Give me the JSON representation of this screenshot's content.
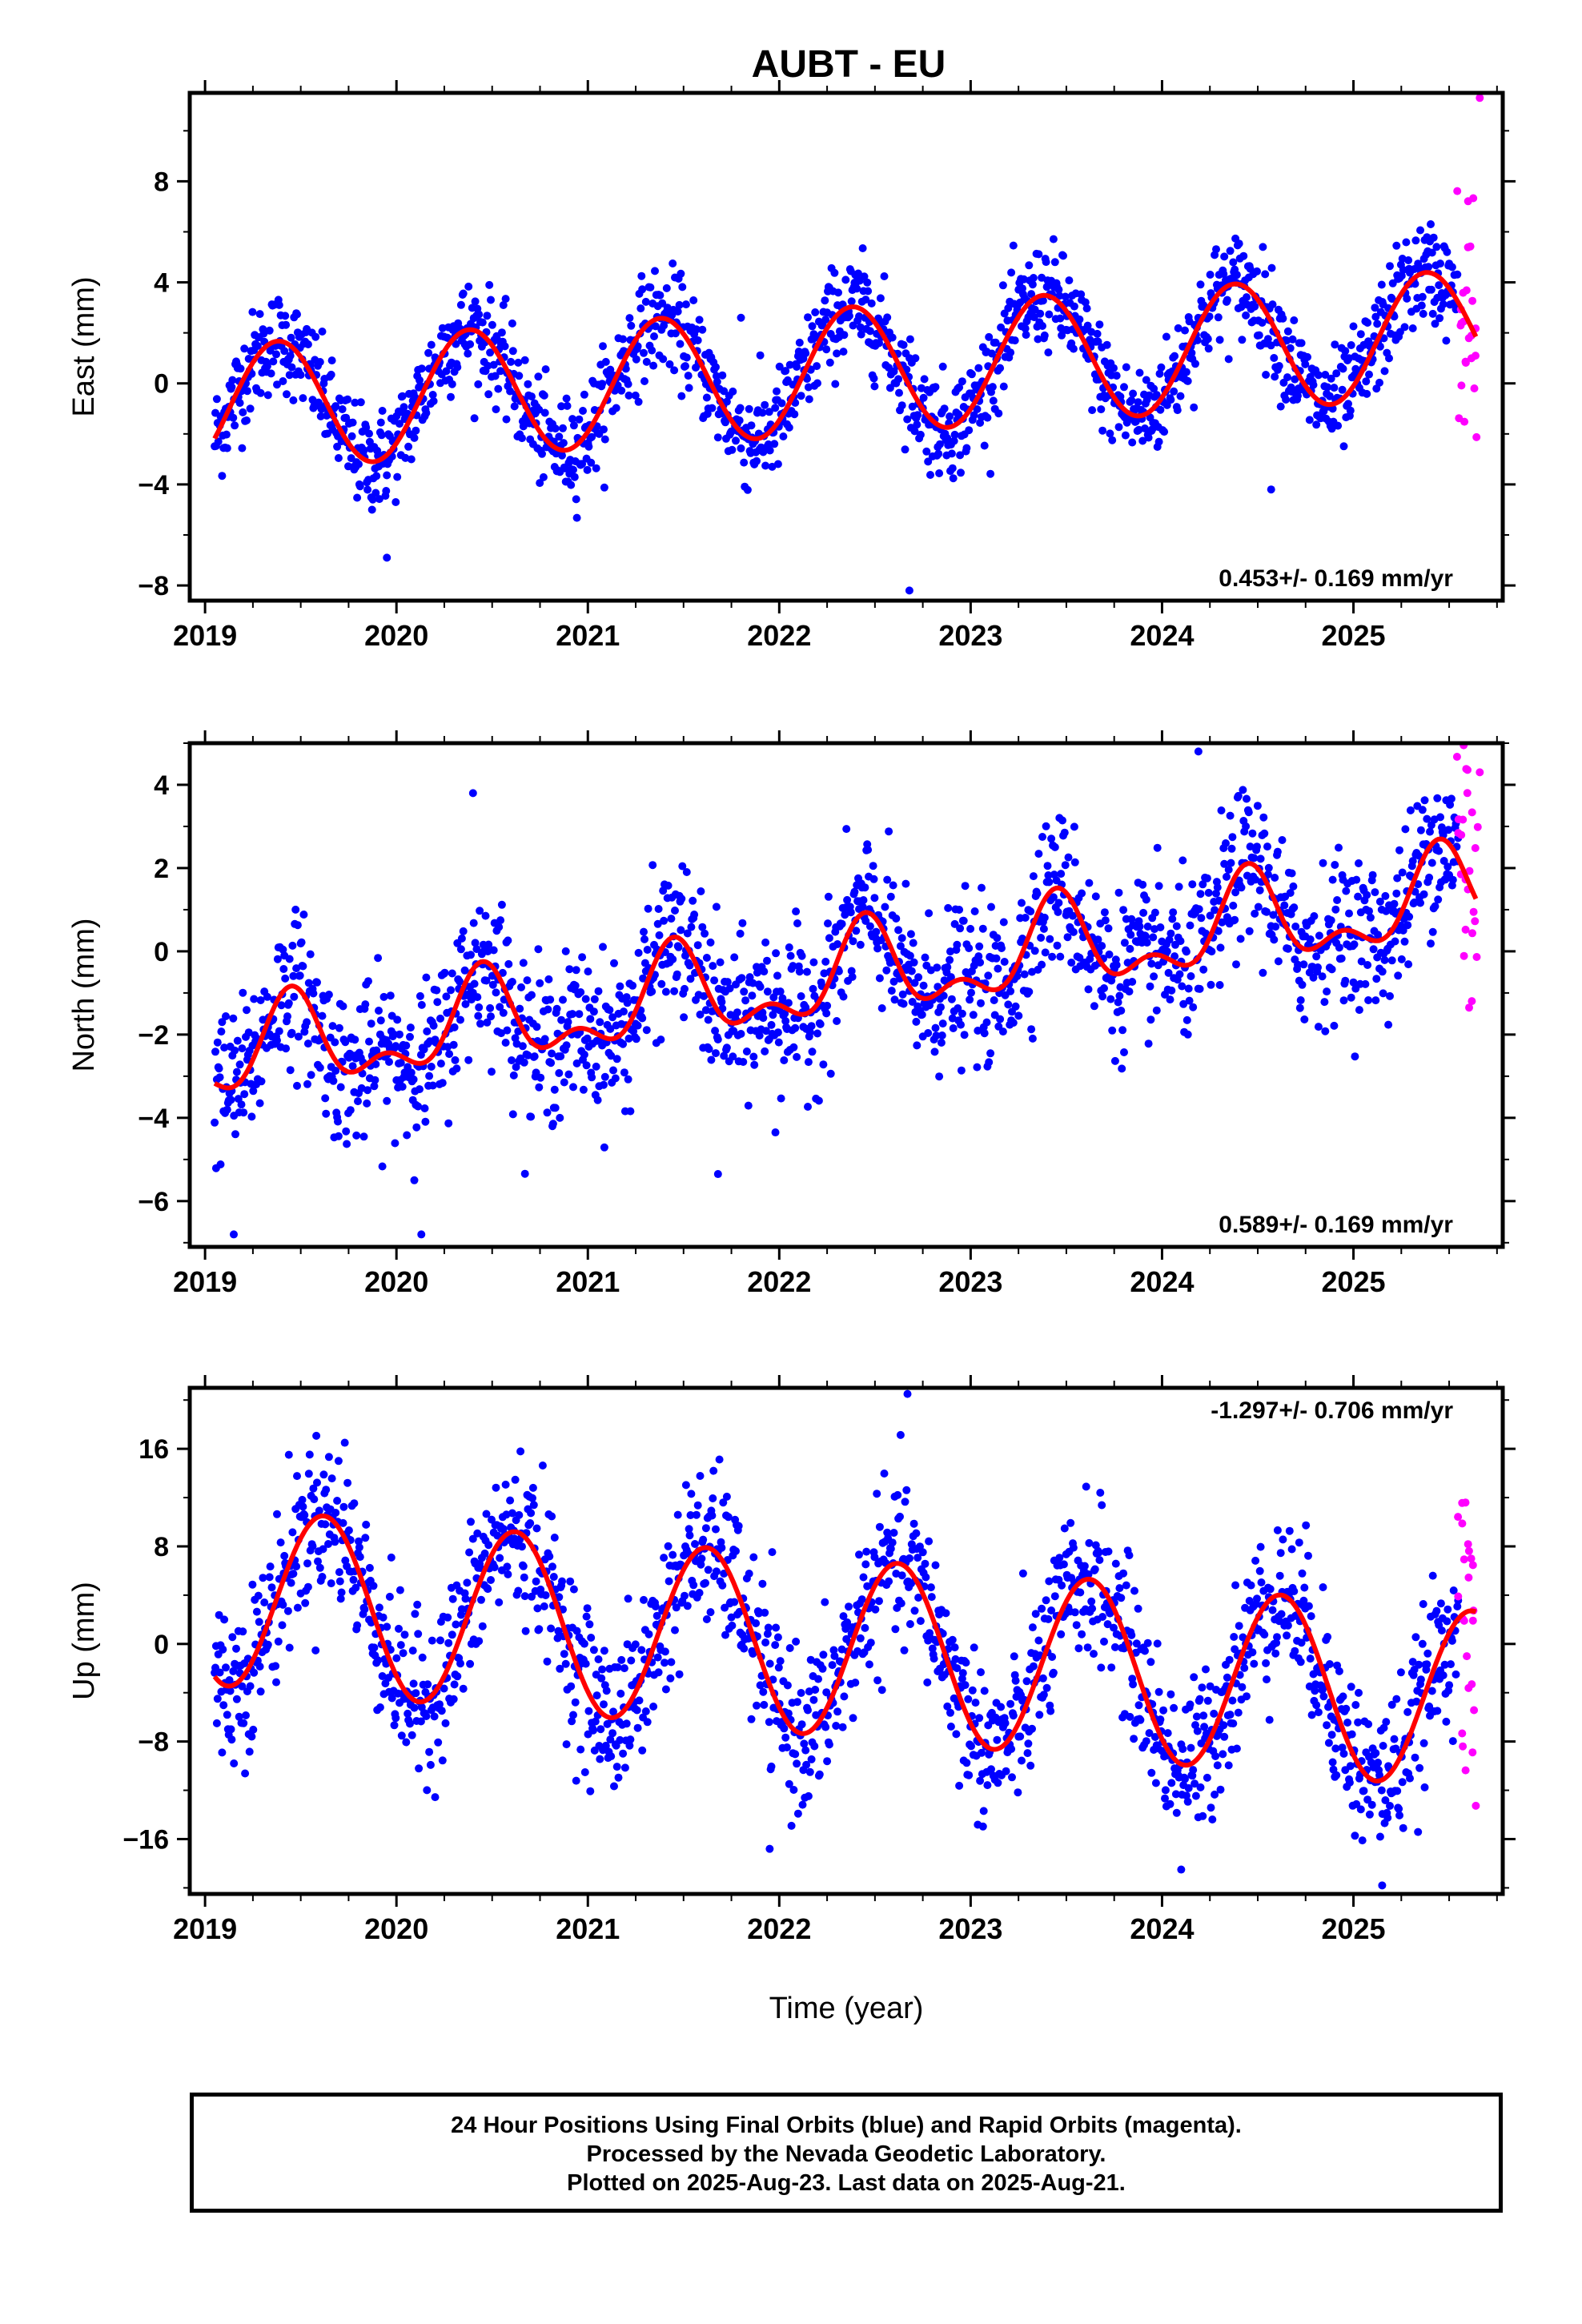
{
  "title": "AUBT - EU",
  "xlabel": "Time (year)",
  "footer": {
    "line1": "24 Hour Positions Using Final Orbits (blue) and Rapid Orbits (magenta).",
    "line2": "Processed by the Nevada Geodetic Laboratory.",
    "line3": "Plotted on 2025-Aug-23. Last data on 2025-Aug-21."
  },
  "colors": {
    "final": "#0000ff",
    "rapid": "#ff00ff",
    "fit": "#ff0000",
    "axis": "#000000"
  },
  "chart_data": [
    {
      "type": "scatter",
      "panel": "east",
      "ylabel": "East (mm)",
      "xlim": [
        2018.92,
        2025.78
      ],
      "ylim": [
        -8.6,
        11.5
      ],
      "yticks": [
        -8,
        -4,
        0,
        4,
        8
      ],
      "ytick_labels": [
        "−8",
        "−4",
        "0",
        "4",
        "8"
      ],
      "xticks": [
        2019,
        2020,
        2021,
        2022,
        2023,
        2024,
        2025
      ],
      "rate_label": "0.453+/- 0.169 mm/yr",
      "rate_position": "bottom-right",
      "data_start": 2019.05,
      "data_end": 2025.64,
      "rapid_start": 2025.55,
      "fit": {
        "offset": -1.0,
        "rate": 0.453,
        "ref_year": 2019.0,
        "amp_annual": 2.5,
        "peak_phase": 0.38,
        "amp_semiannual": 0.0,
        "semi_phase": 0.0
      },
      "scatter_sd": 1.0,
      "outliers": [
        [
          2022.68,
          -8.2
        ],
        [
          2019.95,
          -6.9
        ],
        [
          2021.8,
          2.6
        ],
        [
          2024.57,
          -4.2
        ],
        [
          2025.66,
          11.3
        ]
      ],
      "series": [
        {
          "name": "Final Orbits",
          "color": "#0000ff"
        },
        {
          "name": "Rapid Orbits",
          "color": "#ff00ff"
        }
      ]
    },
    {
      "type": "scatter",
      "panel": "north",
      "ylabel": "North (mm)",
      "xlim": [
        2018.92,
        2025.78
      ],
      "ylim": [
        -7.1,
        5.0
      ],
      "yticks": [
        -6,
        -4,
        -2,
        0,
        2,
        4
      ],
      "ytick_labels": [
        "−6",
        "−4",
        "−2",
        "0",
        "2",
        "4"
      ],
      "xticks": [
        2019,
        2020,
        2021,
        2022,
        2023,
        2024,
        2025
      ],
      "rate_label": "0.589+/- 0.169 mm/yr",
      "rate_position": "bottom-right",
      "data_start": 2019.05,
      "data_end": 2025.64,
      "rapid_start": 2025.55,
      "fit": {
        "offset": -2.6,
        "rate": 0.589,
        "ref_year": 2019.0,
        "amp_annual": 0.95,
        "peak_phase": 0.45,
        "amp_semiannual": 0.55,
        "semi_phase": 0.45
      },
      "scatter_sd": 0.9,
      "outliers": [
        [
          2019.15,
          -6.8
        ],
        [
          2020.13,
          -6.8
        ],
        [
          2021.68,
          -5.35
        ],
        [
          2021.98,
          -4.35
        ],
        [
          2020.4,
          3.8
        ],
        [
          2024.19,
          4.8
        ],
        [
          2025.66,
          4.3
        ]
      ],
      "series": [
        {
          "name": "Final Orbits",
          "color": "#0000ff"
        },
        {
          "name": "Rapid Orbits",
          "color": "#ff00ff"
        }
      ]
    },
    {
      "type": "scatter",
      "panel": "up",
      "ylabel": "Up (mm)",
      "xlim": [
        2018.92,
        2025.78
      ],
      "ylim": [
        -20.5,
        21.0
      ],
      "yticks": [
        -16,
        -8,
        0,
        8,
        16
      ],
      "ytick_labels": [
        "−16",
        "−8",
        "0",
        "8",
        "16"
      ],
      "xticks": [
        2019,
        2020,
        2021,
        2022,
        2023,
        2024,
        2025
      ],
      "xtick_labels": [
        "2019",
        "2020",
        "2021",
        "2022",
        "2023",
        "2024",
        "2025"
      ],
      "rate_label": "-1.297+/- 0.706 mm/yr",
      "rate_position": "top-right",
      "data_start": 2019.05,
      "data_end": 2025.64,
      "rapid_start": 2025.55,
      "fit": {
        "offset": 4.0,
        "rate": -1.297,
        "ref_year": 2019.0,
        "amp_annual": 7.3,
        "peak_phase": 0.62,
        "amp_semiannual": 0.0,
        "semi_phase": 0.0
      },
      "scatter_sd": 3.2,
      "outliers": [
        [
          2022.67,
          20.5
        ],
        [
          2025.15,
          -19.8
        ],
        [
          2024.1,
          -18.5
        ],
        [
          2021.95,
          -16.8
        ],
        [
          2019.73,
          16.5
        ]
      ],
      "series": [
        {
          "name": "Final Orbits",
          "color": "#0000ff"
        },
        {
          "name": "Rapid Orbits",
          "color": "#ff00ff"
        }
      ]
    }
  ]
}
